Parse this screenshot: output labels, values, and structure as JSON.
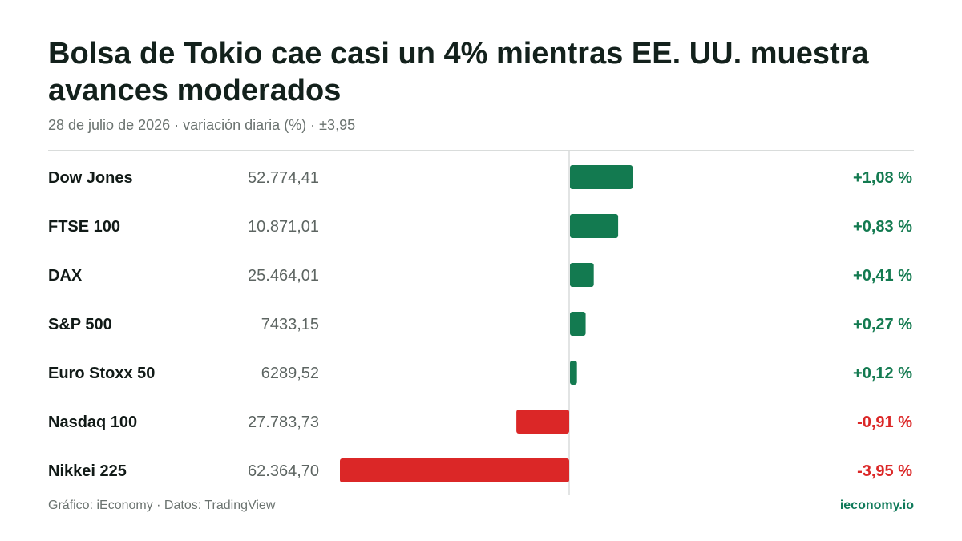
{
  "header": {
    "title": "Bolsa de Tokio cae casi un 4% mientras EE. UU. muestra avances moderados",
    "subtitle": "28 de julio de 2026 · variación diaria (%) · ±3,95"
  },
  "footer": {
    "source": "Gráfico: iEconomy · Datos: TradingView",
    "brand": "ieconomy.io"
  },
  "colors": {
    "positive": "#137a50",
    "negative": "#db2727",
    "axis": "#d9dcdb"
  },
  "chart_data": {
    "type": "bar",
    "orientation": "horizontal",
    "scale_max": 3.95,
    "categories": [
      "Dow Jones",
      "FTSE 100",
      "DAX",
      "S&P 500",
      "Euro Stoxx 50",
      "Nasdaq 100",
      "Nikkei 225"
    ],
    "levels": [
      "52.774,41",
      "10.871,01",
      "25.464,01",
      "7433,15",
      "6289,52",
      "27.783,73",
      "62.364,70"
    ],
    "values": [
      1.08,
      0.83,
      0.41,
      0.27,
      0.12,
      -0.91,
      -3.95
    ],
    "value_labels": [
      "+1,08 %",
      "+0,83 %",
      "+0,41 %",
      "+0,27 %",
      "+0,12 %",
      "-0,91 %",
      "-3,95 %"
    ]
  }
}
